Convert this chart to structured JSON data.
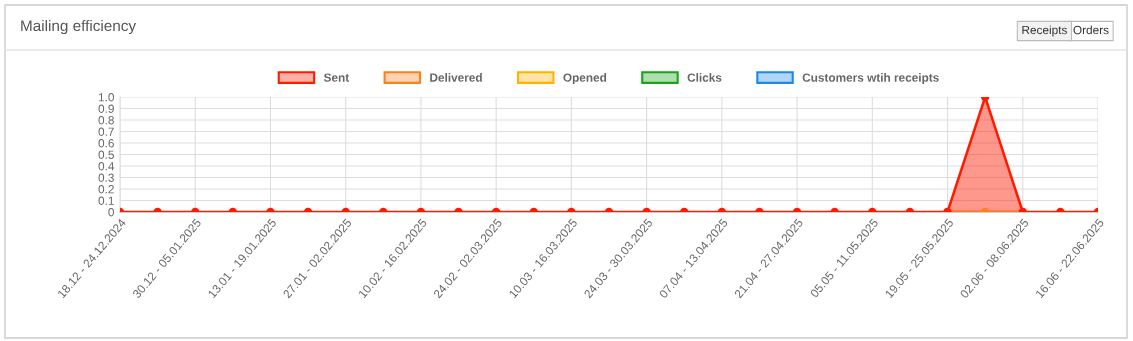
{
  "chart_data": {
    "type": "area",
    "title": "Mailing efficiency",
    "annotations": [
      "Receipts",
      "Orders"
    ],
    "categories": [
      "18.12 - 24.12.2024",
      null,
      "30.12 - 05.01.2025",
      null,
      "13.01 - 19.01.2025",
      null,
      "27.01 - 02.02.2025",
      null,
      "10.02 - 16.02.2025",
      null,
      "24.02 - 02.03.2025",
      null,
      "10.03 - 16.03.2025",
      null,
      "24.03 - 30.03.2025",
      null,
      "07.04 - 13.04.2025",
      null,
      "21.04 - 27.04.2025",
      null,
      "05.05 - 11.05.2025",
      null,
      "19.05 - 25.05.2025",
      null,
      "02.06 - 08.06.2025",
      null,
      "16.06 - 22.06.2025"
    ],
    "series": [
      {
        "name": "Sent",
        "color": "#ff1a00",
        "values": [
          0,
          0,
          0,
          0,
          0,
          0,
          0,
          0,
          0,
          0,
          0,
          0,
          0,
          0,
          0,
          0,
          0,
          0,
          0,
          0,
          0,
          0,
          0,
          1,
          0,
          0,
          0
        ]
      },
      {
        "name": "Delivered",
        "type": "line",
        "color": "#ff7f1e",
        "values": [
          null,
          null,
          null,
          null,
          null,
          null,
          null,
          null,
          null,
          null,
          null,
          null,
          null,
          null,
          null,
          null,
          null,
          null,
          null,
          null,
          null,
          null,
          0,
          0,
          0,
          null,
          null
        ]
      },
      {
        "name": "Opened",
        "color": "#ffb300",
        "values": [
          null,
          null,
          null,
          null,
          null,
          null,
          null,
          null,
          null,
          null,
          null,
          null,
          null,
          null,
          null,
          null,
          null,
          null,
          null,
          null,
          null,
          null,
          null,
          null,
          null,
          null,
          null
        ]
      },
      {
        "name": "Clicks",
        "color": "#1aa31a",
        "values": [
          null,
          null,
          null,
          null,
          null,
          null,
          null,
          null,
          null,
          null,
          null,
          null,
          null,
          null,
          null,
          null,
          null,
          null,
          null,
          null,
          null,
          null,
          null,
          null,
          null,
          null,
          null
        ]
      },
      {
        "name": "Customers wtih receipts",
        "color": "#1e88e5",
        "values": [
          null,
          null,
          null,
          null,
          null,
          null,
          null,
          null,
          null,
          null,
          null,
          null,
          null,
          null,
          null,
          null,
          null,
          null,
          null,
          null,
          null,
          null,
          null,
          null,
          null,
          null,
          null
        ]
      }
    ],
    "ylim": [
      0,
      1.0
    ],
    "yticks": [
      0,
      0.1,
      0.2,
      0.3,
      0.4,
      0.5,
      0.6,
      0.7,
      0.8,
      0.9,
      {
        "value": 1,
        "label": "1.0"
      }
    ],
    "grid": true,
    "legend": "top",
    "marker": "circle",
    "line_style": "solid"
  }
}
